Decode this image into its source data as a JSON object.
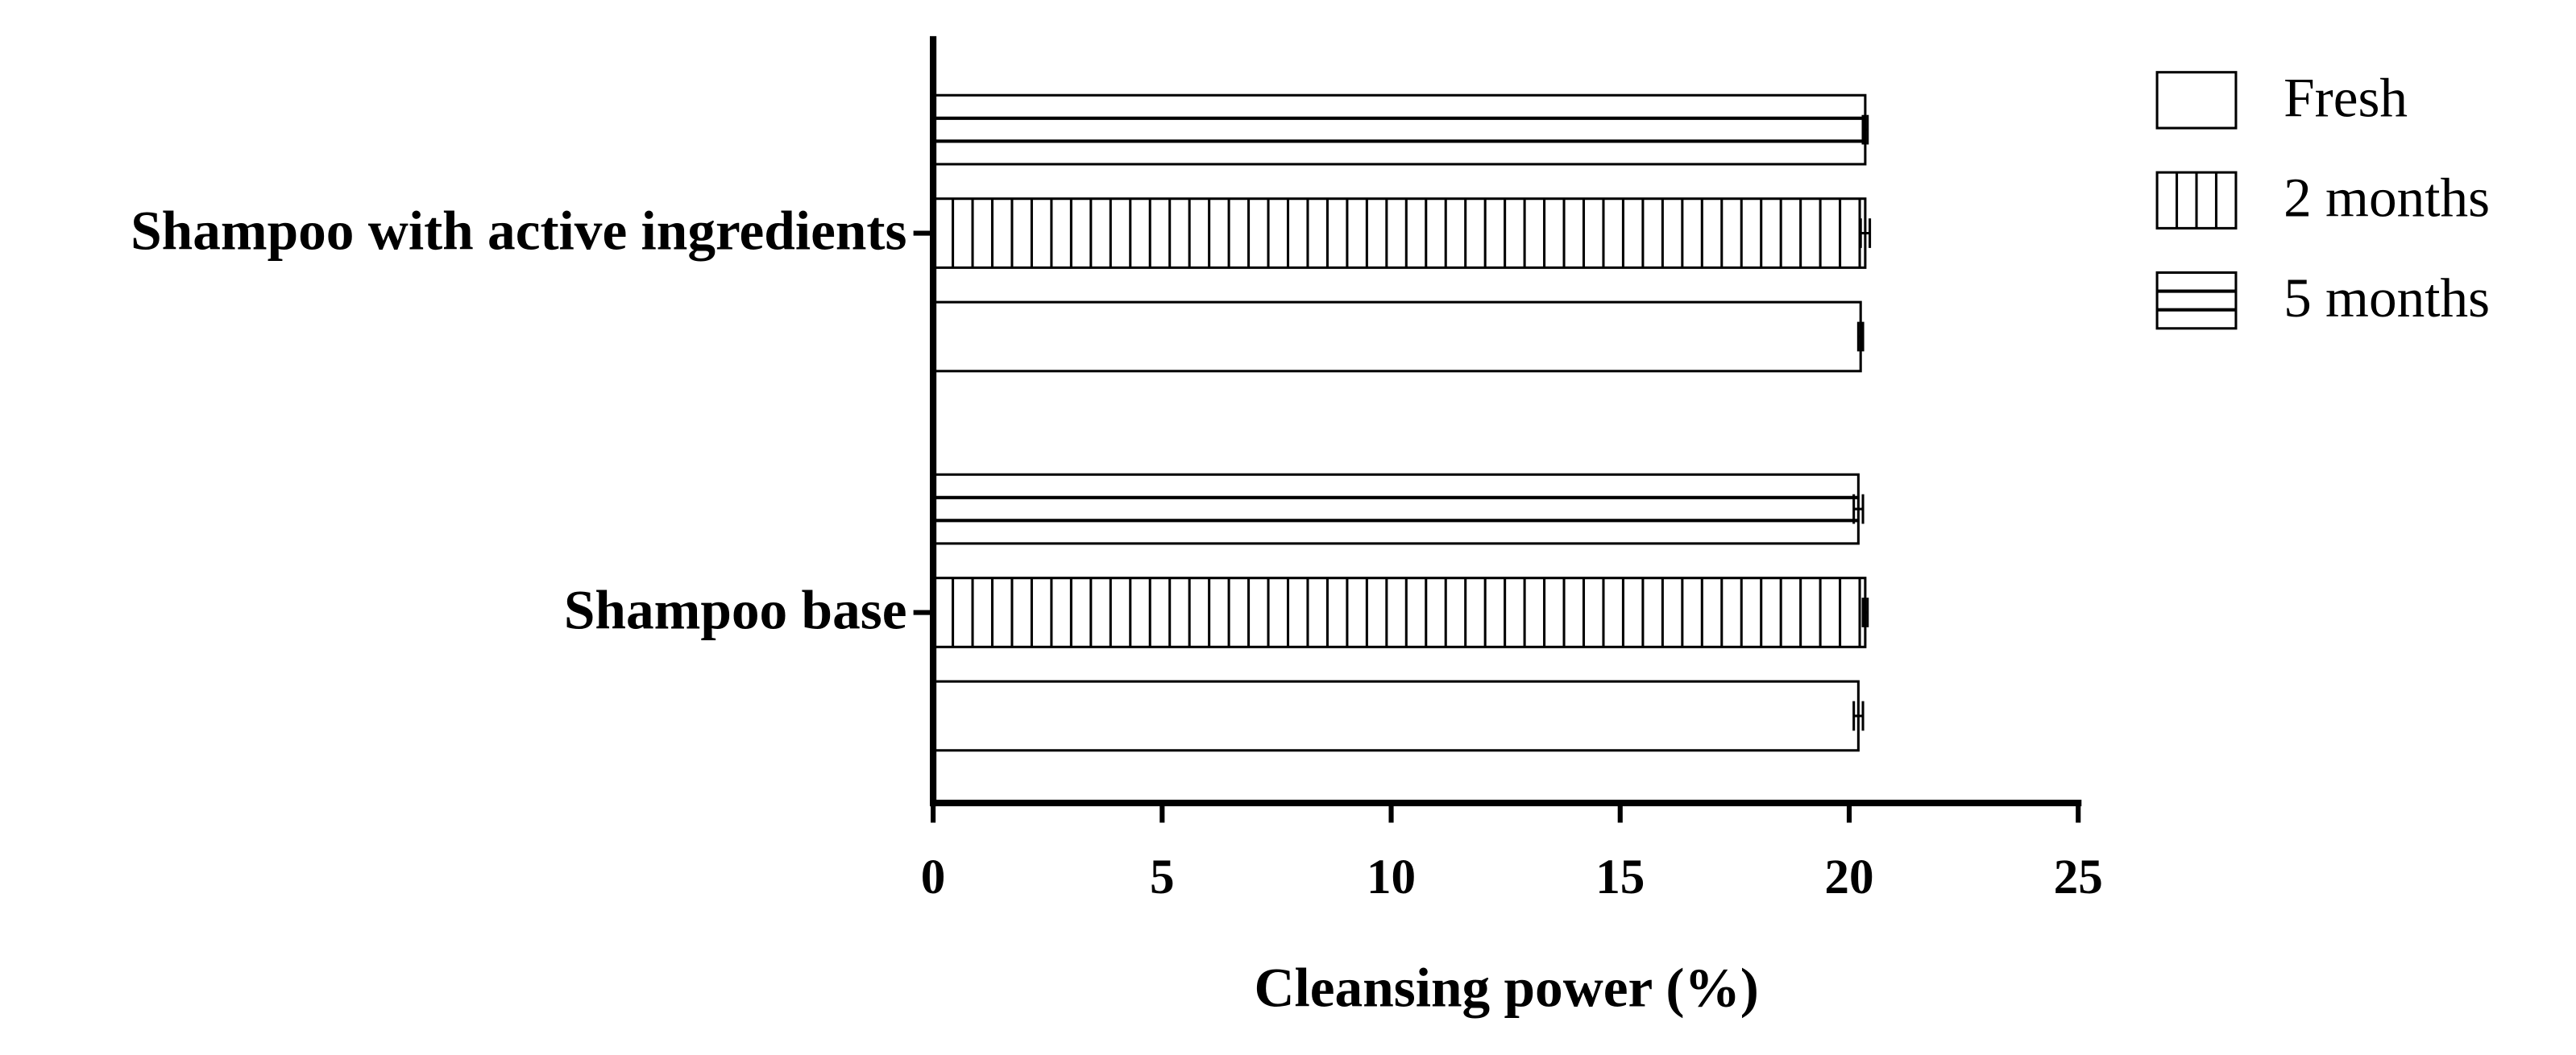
{
  "chart_data": {
    "type": "barh",
    "x_label": "Cleansing power (%)",
    "categories": [
      "Shampoo with active ingredients",
      "Shampoo base"
    ],
    "series": [
      {
        "name": "Fresh",
        "color": "#ffffff",
        "hatch": "none",
        "values": [
          20.25,
          20.2
        ],
        "errors": [
          0.05,
          0.1
        ]
      },
      {
        "name": "2 months",
        "color": "#ffffff",
        "hatch": "vertical",
        "values": [
          20.35,
          20.35
        ],
        "errors": [
          0.1,
          0.05
        ]
      },
      {
        "name": "5 months",
        "color": "#ffffff",
        "hatch": "horizontal",
        "values": [
          20.35,
          20.2
        ],
        "errors": [
          0.05,
          0.1
        ]
      }
    ],
    "xlim": [
      0,
      25
    ],
    "xticks": [
      0,
      5,
      10,
      15,
      20,
      25
    ],
    "grid": false,
    "legend": "upper right"
  }
}
